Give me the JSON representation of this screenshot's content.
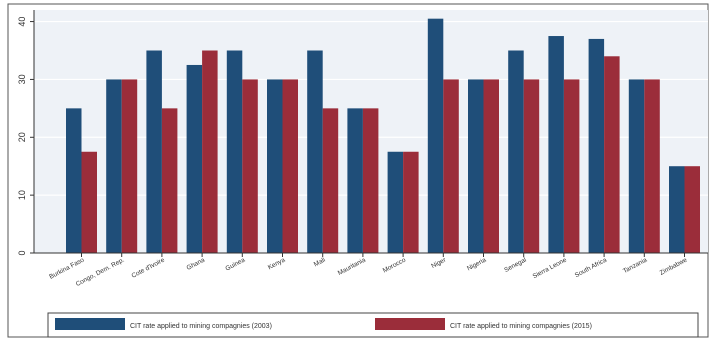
{
  "colors": {
    "series_2003": "#1f4e79",
    "series_2015": "#9b2d3a",
    "plot_bg": "#eef2f7",
    "axis": "#333333",
    "grid": "#ffffff"
  },
  "chart_data": {
    "type": "bar",
    "categories": [
      "Burkina Faso",
      "Congo, Dem. Rep.",
      "Cote d'Ivoire",
      "Ghana",
      "Guinea",
      "Kenya",
      "Mali",
      "Mauritania",
      "Morocco",
      "Niger",
      "Nigeria",
      "Senegal",
      "Sierra Leone",
      "South Africa",
      "Tanzania",
      "Zimbabwe"
    ],
    "series": [
      {
        "name": "CIT rate applied to mining compagnies (2003)",
        "values": [
          25,
          30,
          35,
          32.5,
          35,
          30,
          35,
          25,
          17.5,
          40.5,
          30,
          35,
          37.5,
          37,
          30,
          15
        ]
      },
      {
        "name": "CIT rate applied to mining compagnies (2015)",
        "values": [
          17.5,
          30,
          25,
          35,
          30,
          30,
          25,
          25,
          17.5,
          30,
          30,
          30,
          30,
          34,
          30,
          15
        ]
      }
    ],
    "yticks": [
      0,
      10,
      20,
      30,
      40
    ],
    "ylim": [
      0,
      42
    ],
    "grid": true,
    "legend_position": "bottom"
  }
}
